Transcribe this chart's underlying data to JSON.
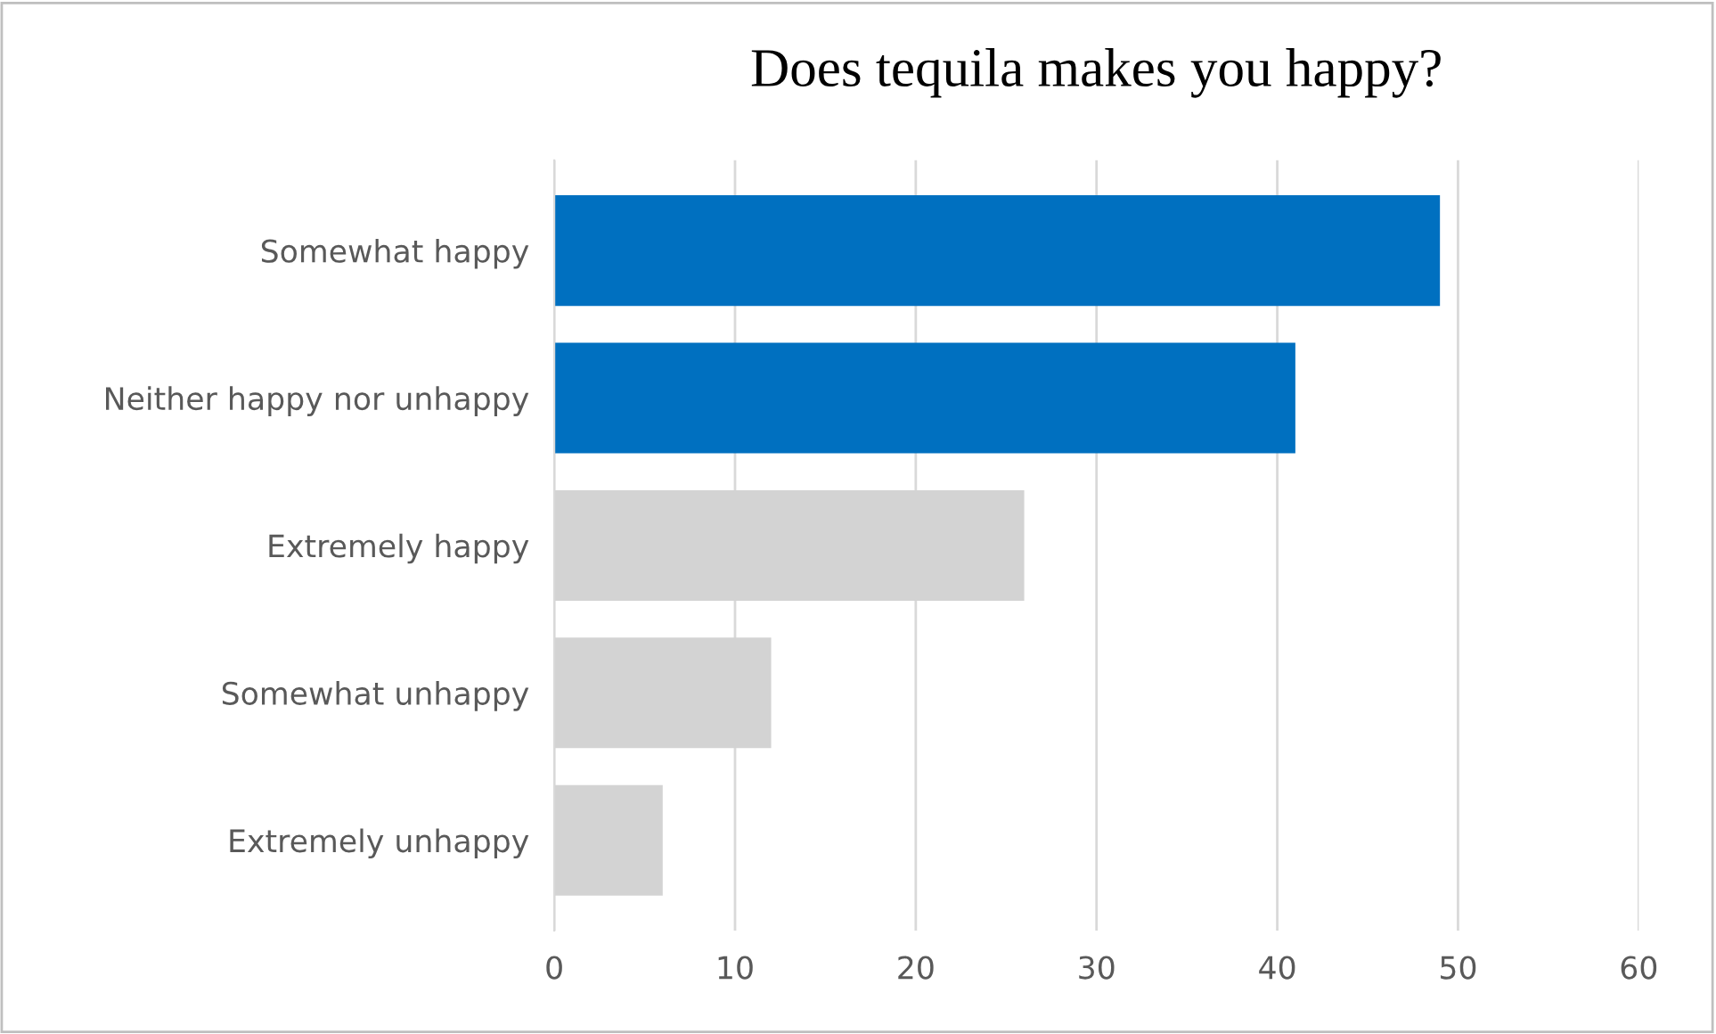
{
  "chart_data": {
    "type": "bar",
    "orientation": "horizontal",
    "title": "Does tequila makes you happy?",
    "categories": [
      "Somewhat happy",
      "Neither happy nor unhappy",
      "Extremely happy",
      "Somewhat unhappy",
      "Extremely unhappy"
    ],
    "values": [
      49,
      41,
      26,
      12,
      6
    ],
    "colors": [
      "#0070c0",
      "#0070c0",
      "#d3d3d3",
      "#d3d3d3",
      "#d3d3d3"
    ],
    "xlim": [
      0,
      60
    ],
    "xticks": [
      0,
      10,
      20,
      30,
      40,
      50,
      60
    ],
    "grid": "x"
  }
}
